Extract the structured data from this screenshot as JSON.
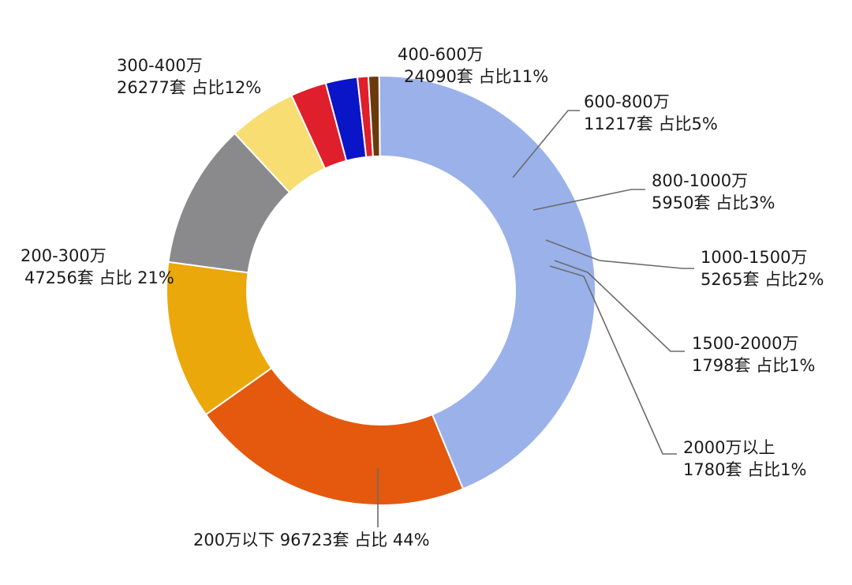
{
  "chart_data": {
    "type": "pie",
    "donut": true,
    "start_angle_deg": 90.5,
    "direction": "clockwise",
    "slices": [
      {
        "label": "200万以下",
        "count": 96723,
        "count_text": "96723套",
        "share_text": "占比 44%",
        "percent": 44,
        "color": "#9ab1ea"
      },
      {
        "label": "200-300万",
        "count": 47256,
        "count_text": "47256套",
        "share_text": "占比 21%",
        "percent": 21,
        "color": "#e4590e"
      },
      {
        "label": "300-400万",
        "count": 26277,
        "count_text": "26277套",
        "share_text": "占比12%",
        "percent": 12,
        "color": "#eba80a"
      },
      {
        "label": "400-600万",
        "count": 24090,
        "count_text": "24090套",
        "share_text": "占比11%",
        "percent": 11,
        "color": "#8a898c"
      },
      {
        "label": "600-800万",
        "count": 11217,
        "count_text": "11217套",
        "share_text": "占比5%",
        "percent": 5,
        "color": "#f7dd72"
      },
      {
        "label": "800-1000万",
        "count": 5950,
        "count_text": "5950套",
        "share_text": "占比3%",
        "percent": 3,
        "color": "#e01f2c"
      },
      {
        "label": "1000-1500万",
        "count": 5265,
        "count_text": "5265套",
        "share_text": "占比2%",
        "percent": 2,
        "color": "#0a15c8"
      },
      {
        "label": "1500-2000万",
        "count": 1798,
        "count_text": "1798套",
        "share_text": "占比1%",
        "percent": 1,
        "color": "#e01f2c"
      },
      {
        "label": "2000万以上",
        "count": 1780,
        "count_text": "1780套",
        "share_text": "占比1%",
        "percent": 1,
        "color": "#6a3a0c"
      }
    ]
  }
}
